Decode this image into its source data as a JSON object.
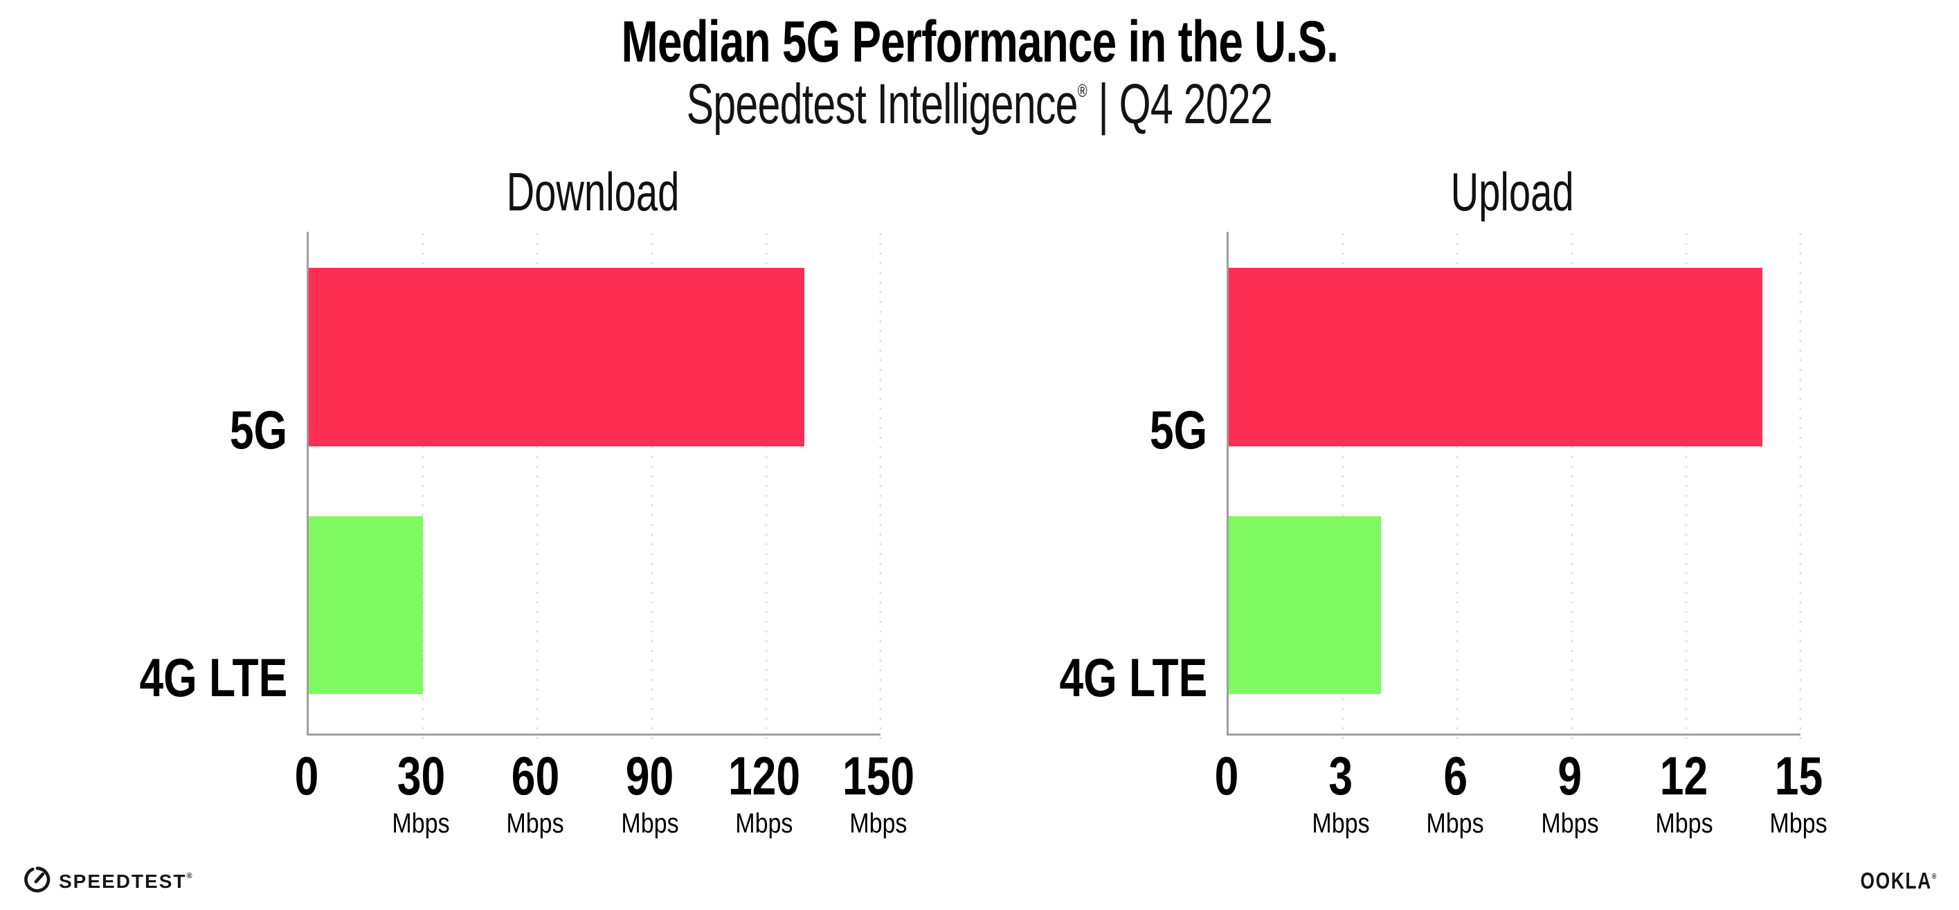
{
  "header": {
    "title": "Median 5G Performance in the U.S.",
    "subtitle_brand": "Speedtest Intelligence",
    "subtitle_reg": "®",
    "subtitle_rest": " | Q4 2022"
  },
  "chart_data": [
    {
      "type": "bar",
      "orientation": "horizontal",
      "title": "Download",
      "categories": [
        "5G",
        "4G LTE"
      ],
      "values": [
        130,
        30
      ],
      "unit": "Mbps",
      "xlim": [
        0,
        150
      ],
      "xticks": [
        0,
        30,
        60,
        90,
        120,
        150
      ],
      "grid": "vertical-dotted",
      "legend": "none",
      "bar_colors": [
        "#FF2E55",
        "#7FFA60"
      ]
    },
    {
      "type": "bar",
      "orientation": "horizontal",
      "title": "Upload",
      "categories": [
        "5G",
        "4G LTE"
      ],
      "values": [
        14,
        4
      ],
      "unit": "Mbps",
      "xlim": [
        0,
        15
      ],
      "xticks": [
        0,
        3,
        6,
        9,
        12,
        15
      ],
      "grid": "vertical-dotted",
      "legend": "none",
      "bar_colors": [
        "#FF2E55",
        "#7FFA60"
      ]
    }
  ],
  "colors": {
    "bar_5g": "#FF2E55",
    "bar_4g_lte": "#7FFA60",
    "axis": "#9EA0A6",
    "gridline": "#DEE0EE",
    "background": "#FFFFFF",
    "text": "#0F0F0F"
  },
  "footer": {
    "speedtest_label": "SPEEDTEST",
    "speedtest_reg": "®",
    "ookla_label": "OOKLA",
    "ookla_reg": "®"
  }
}
